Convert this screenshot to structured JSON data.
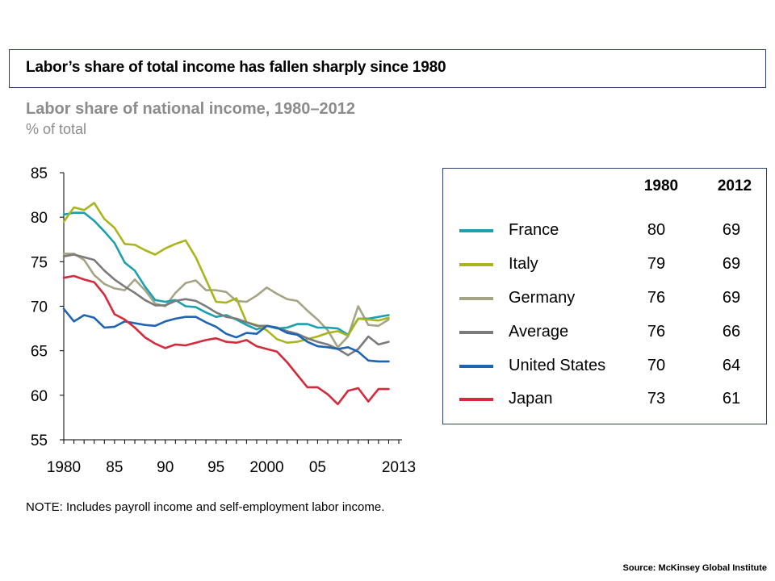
{
  "headline": "Labor’s share of total income has fallen sharply since 1980",
  "note": "NOTE: Includes payroll income and self-employment labor income.",
  "source": "Source: McKinsey Global Institute",
  "legend": {
    "col1": "1980",
    "col2": "2012",
    "rows": [
      {
        "name": "France",
        "v1980": "80",
        "v2012": "69",
        "color": "#1aa0ae"
      },
      {
        "name": "Italy",
        "v1980": "79",
        "v2012": "69",
        "color": "#aab51e"
      },
      {
        "name": "Germany",
        "v1980": "76",
        "v2012": "69",
        "color": "#a5a585"
      },
      {
        "name": "Average",
        "v1980": "76",
        "v2012": "66",
        "color": "#7b7b7b"
      },
      {
        "name": "United States",
        "v1980": "70",
        "v2012": "64",
        "color": "#1f63b5"
      },
      {
        "name": "Japan",
        "v1980": "73",
        "v2012": "61",
        "color": "#d52a3a"
      }
    ]
  },
  "chart_data": {
    "type": "line",
    "title": "Labor share of national income, 1980–2012",
    "ylabel": "% of total",
    "xlabel": "",
    "ylim": [
      55,
      85
    ],
    "xlim": [
      1980,
      2013
    ],
    "yticks": [
      55,
      60,
      65,
      70,
      75,
      80,
      85
    ],
    "xticks": [
      {
        "value": 1980,
        "label": "1980"
      },
      {
        "value": 1985,
        "label": "85"
      },
      {
        "value": 1990,
        "label": "90"
      },
      {
        "value": 1995,
        "label": "95"
      },
      {
        "value": 2000,
        "label": "2000"
      },
      {
        "value": 2005,
        "label": "05"
      },
      {
        "value": 2013,
        "label": "2013"
      }
    ],
    "grid": false,
    "x": [
      1980,
      1981,
      1982,
      1983,
      1984,
      1985,
      1986,
      1987,
      1988,
      1989,
      1990,
      1991,
      1992,
      1993,
      1994,
      1995,
      1996,
      1997,
      1998,
      1999,
      2000,
      2001,
      2002,
      2003,
      2004,
      2005,
      2006,
      2007,
      2008,
      2009,
      2010,
      2011,
      2012
    ],
    "series": [
      {
        "name": "Germany",
        "color": "#a5a585",
        "values": [
          75.9,
          75.9,
          75.2,
          73.5,
          72.5,
          72.0,
          71.8,
          73.0,
          71.8,
          70.3,
          70.0,
          71.5,
          72.6,
          72.9,
          71.8,
          71.8,
          71.6,
          70.6,
          70.5,
          71.2,
          72.1,
          71.4,
          70.8,
          70.6,
          69.5,
          68.5,
          67.3,
          65.4,
          66.6,
          70.0,
          67.9,
          67.8,
          68.5
        ]
      },
      {
        "name": "France",
        "color": "#1aa0ae",
        "values": [
          80.3,
          80.5,
          80.5,
          79.6,
          78.4,
          77.1,
          74.9,
          74.0,
          72.2,
          70.7,
          70.5,
          70.7,
          70.0,
          69.9,
          69.3,
          68.8,
          69.0,
          68.5,
          67.9,
          67.4,
          67.8,
          67.5,
          67.6,
          68.0,
          68.0,
          67.6,
          67.6,
          67.5,
          66.8,
          68.6,
          68.6,
          68.8,
          69.0
        ]
      },
      {
        "name": "Italy",
        "color": "#aab51e",
        "values": [
          79.5,
          81.1,
          80.8,
          81.6,
          79.8,
          78.8,
          77.0,
          76.9,
          76.3,
          75.8,
          76.5,
          77.0,
          77.4,
          75.5,
          73.0,
          70.5,
          70.4,
          70.9,
          68.2,
          67.9,
          67.3,
          66.3,
          65.9,
          66.0,
          66.3,
          66.6,
          67.0,
          67.2,
          66.7,
          68.6,
          68.5,
          68.4,
          68.7
        ]
      },
      {
        "name": "Average",
        "color": "#7b7b7b",
        "values": [
          75.6,
          75.8,
          75.5,
          75.2,
          74.0,
          73.0,
          72.2,
          71.5,
          70.7,
          70.1,
          70.1,
          70.6,
          70.8,
          70.6,
          70.0,
          69.3,
          68.8,
          68.6,
          68.2,
          67.8,
          67.8,
          67.6,
          67.2,
          66.9,
          66.4,
          66.0,
          65.7,
          65.2,
          64.5,
          65.2,
          66.6,
          65.7,
          66.0
        ]
      },
      {
        "name": "United States",
        "color": "#1f63b5",
        "values": [
          69.7,
          68.3,
          69.0,
          68.7,
          67.6,
          67.7,
          68.3,
          68.1,
          67.9,
          67.8,
          68.3,
          68.6,
          68.8,
          68.8,
          68.2,
          67.7,
          66.9,
          66.5,
          67.0,
          66.9,
          67.8,
          67.6,
          67.0,
          66.8,
          66.0,
          65.5,
          65.4,
          65.2,
          65.4,
          64.9,
          63.9,
          63.8,
          63.8
        ]
      },
      {
        "name": "Japan",
        "color": "#d52a3a",
        "values": [
          73.2,
          73.4,
          73.0,
          72.7,
          71.3,
          69.1,
          68.5,
          67.6,
          66.5,
          65.8,
          65.3,
          65.7,
          65.6,
          65.9,
          66.2,
          66.4,
          66.0,
          65.9,
          66.2,
          65.5,
          65.2,
          64.9,
          63.7,
          62.3,
          60.9,
          60.9,
          60.1,
          59.0,
          60.5,
          60.8,
          59.3,
          60.7,
          60.7
        ]
      }
    ]
  }
}
